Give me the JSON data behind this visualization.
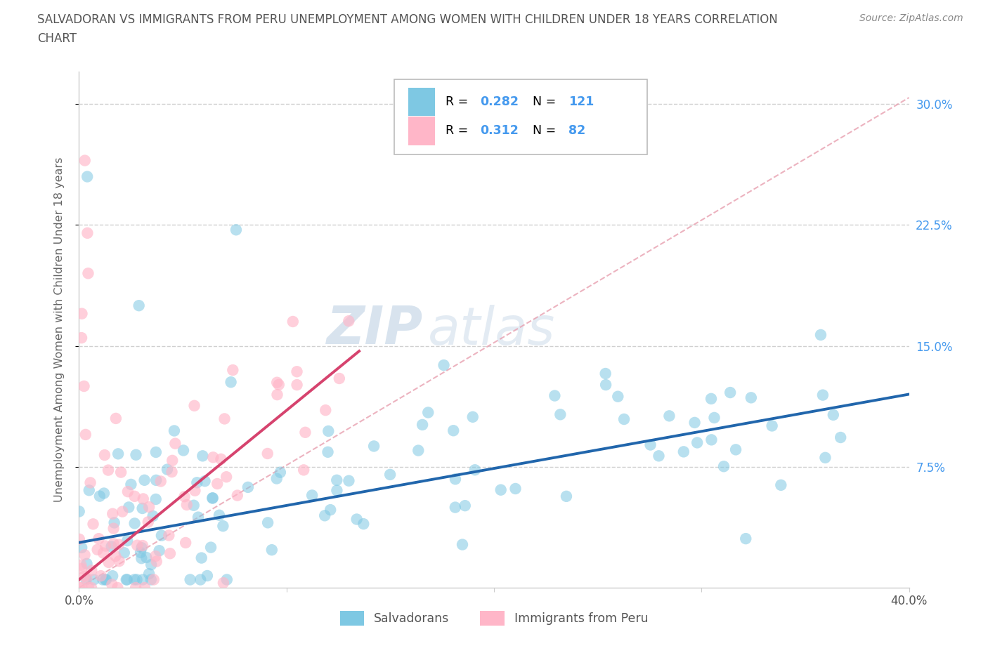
{
  "title_line1": "SALVADORAN VS IMMIGRANTS FROM PERU UNEMPLOYMENT AMONG WOMEN WITH CHILDREN UNDER 18 YEARS CORRELATION",
  "title_line2": "CHART",
  "source_text": "Source: ZipAtlas.com",
  "ylabel": "Unemployment Among Women with Children Under 18 years",
  "xlim": [
    0.0,
    0.4
  ],
  "ylim": [
    0.0,
    0.32
  ],
  "yticks": [
    0.075,
    0.15,
    0.225,
    0.3
  ],
  "ytick_labels": [
    "7.5%",
    "15.0%",
    "22.5%",
    "30.0%"
  ],
  "xticks": [
    0.0,
    0.1,
    0.2,
    0.3,
    0.4
  ],
  "xtick_labels": [
    "0.0%",
    "",
    "",
    "",
    "40.0%"
  ],
  "salvadoran_color": "#7ec8e3",
  "peru_color": "#ffb6c8",
  "trend_salvadoran_color": "#2166ac",
  "trend_peru_color": "#d6436e",
  "diag_color": "#f4a0b0",
  "R_salvadoran": "0.282",
  "N_salvadoran": "121",
  "R_peru": "0.312",
  "N_peru": "82",
  "legend_labels": [
    "Salvadorans",
    "Immigrants from Peru"
  ],
  "watermark_left": "ZIP",
  "watermark_right": "atlas",
  "background_color": "#ffffff",
  "grid_color": "#d0d0d0",
  "title_color": "#555555",
  "axis_label_color": "#666666",
  "right_tick_color": "#4499ee",
  "legend_r_color": "#4499ee",
  "legend_n_color": "#4499ee"
}
